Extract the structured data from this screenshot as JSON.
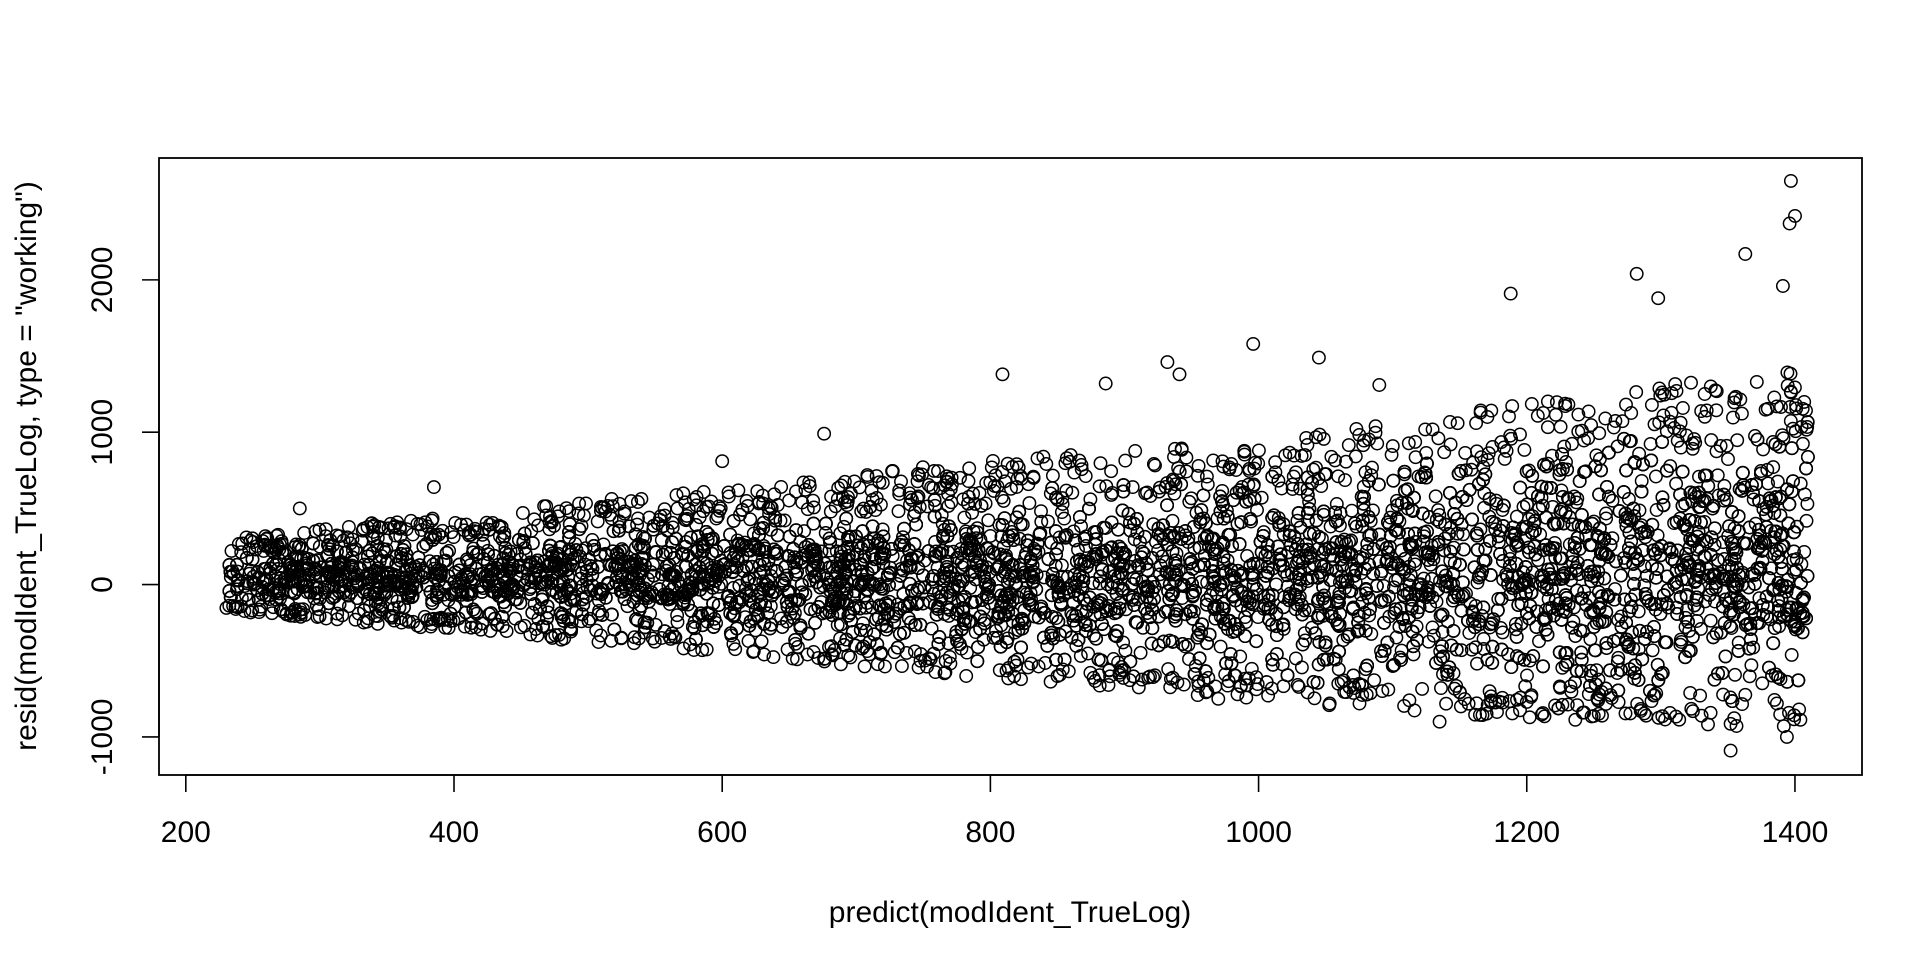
{
  "chart_data": {
    "type": "scatter",
    "title": "",
    "xlabel": "predict(modIdent_TrueLog)",
    "ylabel": "resid(modIdent_TrueLog, type = \"working\")",
    "xlim": [
      180,
      1450
    ],
    "ylim": [
      -1250,
      2800
    ],
    "x_ticks": [
      200,
      400,
      600,
      800,
      1000,
      1200,
      1400
    ],
    "y_ticks": [
      -1000,
      0,
      1000,
      2000
    ],
    "x_tick_labels": [
      "200",
      "400",
      "600",
      "800",
      "1000",
      "1200",
      "1400"
    ],
    "y_tick_labels": [
      "-1000",
      "0",
      "1000",
      "2000"
    ],
    "grid": false,
    "legend": "none",
    "marker": "open-circle",
    "marker_color": "#000000",
    "x_range_of_points": [
      230,
      1410
    ],
    "residual_band": {
      "x": [
        230,
        400,
        600,
        800,
        1000,
        1200,
        1410
      ],
      "upper": [
        230,
        360,
        480,
        620,
        700,
        900,
        1100
      ],
      "lower": [
        -140,
        -250,
        -380,
        -520,
        -650,
        -740,
        -800
      ]
    },
    "notable_points": [
      {
        "x": 1397,
        "y": 2650
      },
      {
        "x": 1400,
        "y": 2420
      },
      {
        "x": 1396,
        "y": 2370
      },
      {
        "x": 1363,
        "y": 2170
      },
      {
        "x": 1282,
        "y": 2040
      },
      {
        "x": 1391,
        "y": 1960
      },
      {
        "x": 1188,
        "y": 1910
      },
      {
        "x": 1298,
        "y": 1880
      },
      {
        "x": 996,
        "y": 1580
      },
      {
        "x": 1045,
        "y": 1490
      },
      {
        "x": 932,
        "y": 1460
      },
      {
        "x": 941,
        "y": 1380
      },
      {
        "x": 809,
        "y": 1380
      },
      {
        "x": 1090,
        "y": 1310
      },
      {
        "x": 886,
        "y": 1320
      },
      {
        "x": 676,
        "y": 990
      },
      {
        "x": 600,
        "y": 810
      },
      {
        "x": 385,
        "y": 640
      },
      {
        "x": 285,
        "y": 500
      },
      {
        "x": 1135,
        "y": -900
      },
      {
        "x": 1352,
        "y": -1090
      },
      {
        "x": 1394,
        "y": -1000
      },
      {
        "x": 1200,
        "y": -770
      },
      {
        "x": 970,
        "y": -750
      },
      {
        "x": 782,
        "y": -600
      }
    ]
  }
}
